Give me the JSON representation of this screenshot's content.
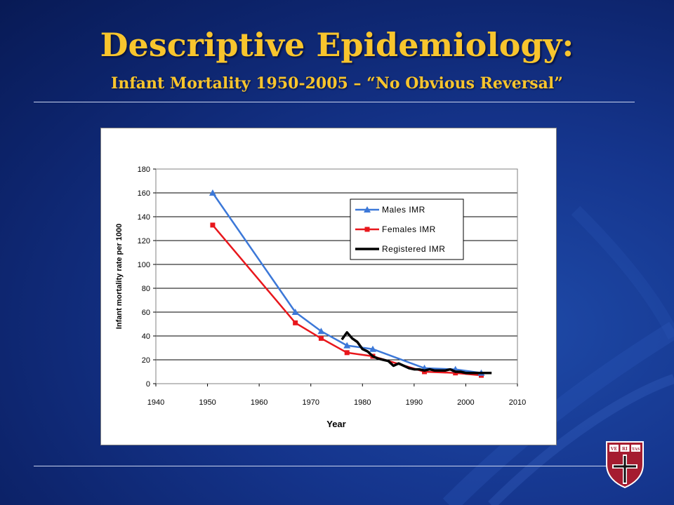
{
  "slide": {
    "title": "Descriptive Epidemiology:",
    "subtitle": "Infant Mortality 1950-2005 – “No Obvious Reversal”",
    "colors": {
      "background": "#15358d",
      "title": "#f8c52d",
      "rule": "#c9d3ee"
    },
    "logo": {
      "icon": "harvard-shield-icon",
      "text": [
        "VE",
        "RI",
        "TAS"
      ]
    }
  },
  "chart_data": {
    "type": "line",
    "xlabel": "Year",
    "ylabel": "Infant mortality rate per 1000",
    "xlim": [
      1940,
      2010
    ],
    "ylim": [
      0,
      180
    ],
    "xticks": [
      1940,
      1950,
      1960,
      1970,
      1980,
      1990,
      2000,
      2010
    ],
    "yticks": [
      0,
      20,
      40,
      60,
      80,
      100,
      120,
      140,
      160,
      180
    ],
    "grid": "horizontal",
    "legend": "top-right",
    "series": [
      {
        "name": "Males IMR",
        "color": "#3c78d8",
        "marker": "triangle",
        "x": [
          1951,
          1967,
          1972,
          1977,
          1982,
          1992,
          1998,
          2003
        ],
        "y": [
          160,
          60,
          44,
          32,
          29,
          13,
          12,
          9
        ]
      },
      {
        "name": "Females IMR",
        "color": "#e8171c",
        "marker": "square",
        "x": [
          1951,
          1967,
          1972,
          1977,
          1982,
          1992,
          1998,
          2003
        ],
        "y": [
          133,
          51,
          38,
          26,
          23,
          10,
          9,
          7
        ]
      },
      {
        "name": "Registered IMR",
        "color": "#000000",
        "marker": "none",
        "x": [
          1976,
          1977,
          1978,
          1979,
          1980,
          1981,
          1982,
          1983,
          1984,
          1985,
          1986,
          1987,
          1988,
          1989,
          1990,
          1991,
          1992,
          1993,
          1994,
          1995,
          1996,
          1997,
          1998,
          1999,
          2000,
          2001,
          2002,
          2003,
          2004,
          2005
        ],
        "y": [
          37,
          43,
          38,
          35,
          29,
          27,
          23,
          21,
          20,
          19,
          15,
          17,
          15,
          13,
          12,
          12,
          11,
          12,
          11,
          11,
          11,
          12,
          10,
          10,
          9,
          9,
          9,
          9,
          9,
          9
        ]
      }
    ]
  }
}
